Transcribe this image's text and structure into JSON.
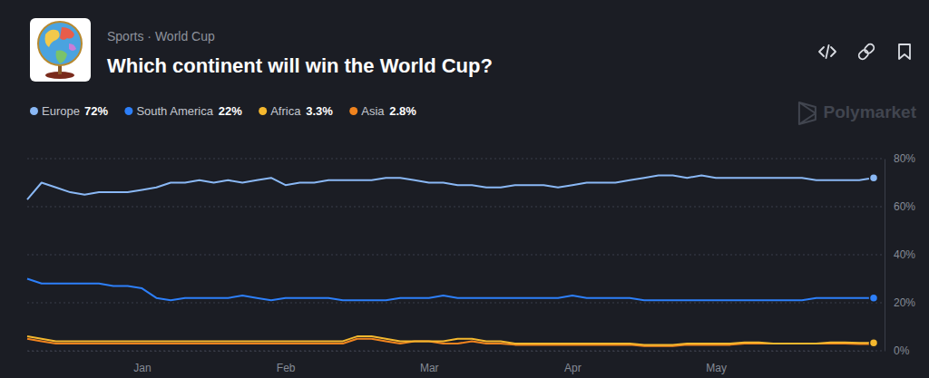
{
  "chart_data": {
    "type": "line",
    "title": "Which continent will win the World Cup?",
    "subtitle": "Sports · World Cup",
    "watermark": "Polymarket",
    "categories": [
      null,
      null,
      null,
      null,
      null,
      null,
      null,
      null,
      "Jan",
      null,
      null,
      null,
      null,
      null,
      null,
      null,
      null,
      null,
      "Feb",
      null,
      null,
      null,
      null,
      null,
      null,
      null,
      null,
      null,
      "Mar",
      null,
      null,
      null,
      null,
      null,
      null,
      null,
      null,
      null,
      "Apr",
      null,
      null,
      null,
      null,
      null,
      null,
      null,
      null,
      null,
      "May",
      null,
      null,
      null,
      null,
      null,
      null,
      null,
      null,
      null,
      null,
      null
    ],
    "series": [
      {
        "name": "Europe",
        "color": "#8ab8f5",
        "value_label": "72%",
        "values": [
          63,
          70,
          68,
          66,
          65,
          66,
          66,
          66,
          67,
          68,
          70,
          70,
          71,
          70,
          71,
          70,
          71,
          72,
          69,
          70,
          70,
          71,
          71,
          71,
          71,
          72,
          72,
          71,
          70,
          70,
          69,
          69,
          68,
          68,
          69,
          69,
          69,
          68,
          69,
          70,
          70,
          70,
          71,
          72,
          73,
          73,
          72,
          73,
          72,
          72,
          72,
          72,
          72,
          72,
          72,
          71,
          71,
          71,
          71,
          72
        ]
      },
      {
        "name": "South America",
        "color": "#2d7ff9",
        "value_label": "22%",
        "values": [
          30,
          28,
          28,
          28,
          28,
          28,
          27,
          27,
          26,
          22,
          21,
          22,
          22,
          22,
          22,
          23,
          22,
          21,
          22,
          22,
          22,
          22,
          21,
          21,
          21,
          21,
          22,
          22,
          22,
          23,
          22,
          22,
          22,
          22,
          22,
          22,
          22,
          22,
          23,
          22,
          22,
          22,
          22,
          21,
          21,
          21,
          21,
          21,
          21,
          21,
          21,
          21,
          21,
          21,
          21,
          22,
          22,
          22,
          22,
          22
        ]
      },
      {
        "name": "Africa",
        "color": "#f5b82e",
        "value_label": "3.3%",
        "values": [
          6,
          5,
          4,
          4,
          4,
          4,
          4,
          4,
          4,
          4,
          4,
          4,
          4,
          4,
          4,
          4,
          4,
          4,
          4,
          4,
          4,
          4,
          4,
          6,
          6,
          5,
          4,
          4,
          4,
          4,
          5,
          5,
          4,
          4,
          3,
          3,
          3,
          3,
          3,
          3,
          3,
          3,
          3,
          2.5,
          2.5,
          2.5,
          3,
          3,
          3,
          3,
          3.5,
          3.5,
          3,
          3,
          3,
          3,
          3.5,
          3.5,
          3.3,
          3.3
        ]
      },
      {
        "name": "Asia",
        "color": "#f0831e",
        "value_label": "2.8%",
        "values": [
          5,
          4,
          3,
          3,
          3,
          3,
          3,
          3,
          3,
          3,
          3,
          3,
          3,
          3,
          3,
          3,
          3,
          3,
          3,
          3,
          3,
          3,
          3,
          5,
          5,
          4,
          3,
          4,
          4,
          3,
          3,
          4,
          3,
          3,
          2.5,
          2.5,
          2.5,
          2.5,
          2.5,
          2.5,
          2.5,
          2.5,
          2.5,
          2,
          2,
          2,
          2.5,
          2.5,
          2.5,
          2.5,
          3,
          3,
          3,
          3,
          3,
          3,
          3,
          3,
          2.8,
          2.8
        ]
      }
    ],
    "ylim": [
      0,
      80
    ],
    "yticks": [
      {
        "value": 0,
        "label": "0%"
      },
      {
        "value": 20,
        "label": "20%"
      },
      {
        "value": 40,
        "label": "40%"
      },
      {
        "value": 60,
        "label": "60%"
      },
      {
        "value": 80,
        "label": "80%"
      }
    ],
    "grid": true,
    "legend": "top-left"
  }
}
